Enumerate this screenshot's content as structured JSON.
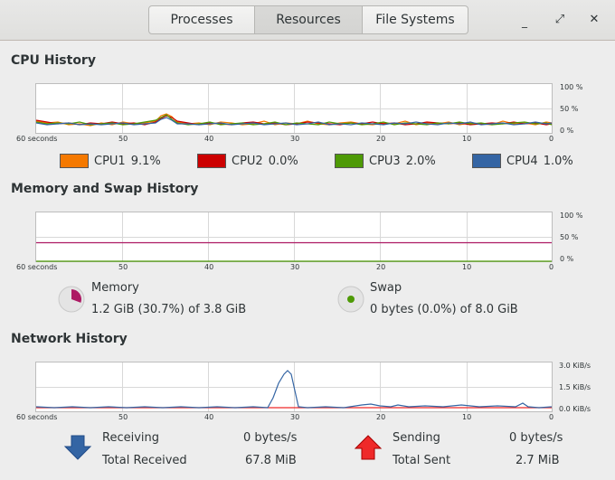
{
  "tabs": [
    {
      "label": "Processes",
      "active": false
    },
    {
      "label": "Resources",
      "active": true
    },
    {
      "label": "File Systems",
      "active": false
    }
  ],
  "window_controls": {
    "minimize": "_",
    "maximize": "⤢",
    "close": "✕"
  },
  "cpu": {
    "title": "CPU History",
    "y_ticks": [
      "100 %",
      "50 %",
      "0 %"
    ],
    "x_ticks": [
      "60 seconds",
      "50",
      "40",
      "30",
      "20",
      "10",
      "0"
    ],
    "legend": [
      {
        "name": "CPU1",
        "value": "9.1%",
        "color": "#f57900"
      },
      {
        "name": "CPU2",
        "value": "0.0%",
        "color": "#cc0000"
      },
      {
        "name": "CPU3",
        "value": "2.0%",
        "color": "#4e9a06"
      },
      {
        "name": "CPU4",
        "value": "1.0%",
        "color": "#3465a4"
      }
    ]
  },
  "memory": {
    "title": "Memory and Swap History",
    "y_ticks": [
      "100 %",
      "50 %",
      "0 %"
    ],
    "x_ticks": [
      "60 seconds",
      "50",
      "40",
      "30",
      "20",
      "10",
      "0"
    ],
    "memory_label": "Memory",
    "memory_value": "1.2 GiB (30.7%) of 3.8 GiB",
    "memory_color": "#ad1a64",
    "memory_fraction": 0.307,
    "swap_label": "Swap",
    "swap_value": "0 bytes (0.0%) of 8.0 GiB",
    "swap_color": "#4e9a06"
  },
  "network": {
    "title": "Network History",
    "y_ticks": [
      "3.0 KiB/s",
      "1.5 KiB/s",
      "0.0 KiB/s"
    ],
    "x_ticks": [
      "60 seconds",
      "50",
      "40",
      "30",
      "20",
      "10",
      "0"
    ],
    "receiving_label": "Receiving",
    "receiving_rate": "0 bytes/s",
    "total_received_label": "Total Received",
    "total_received": "67.8 MiB",
    "sending_label": "Sending",
    "sending_rate": "0 bytes/s",
    "total_sent_label": "Total Sent",
    "total_sent": "2.7 MiB",
    "receiving_color": "#3465a4",
    "sending_color": "#ef2929"
  }
}
